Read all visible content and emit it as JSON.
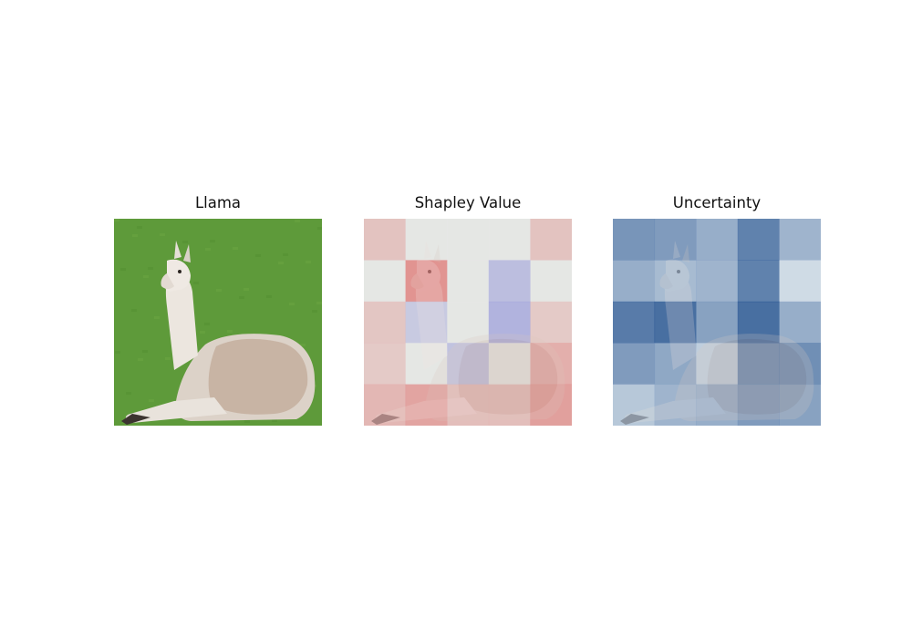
{
  "chart_data": [
    {
      "type": "image",
      "title": "Llama",
      "image_subject": "llama-photo"
    },
    {
      "type": "heatmap",
      "title": "Shapley Value",
      "rows": 5,
      "cols": 5,
      "colormap": "diverging-red-blue",
      "values": [
        [
          0.15,
          0.0,
          0.0,
          0.0,
          0.15
        ],
        [
          0.0,
          0.75,
          0.0,
          -0.2,
          0.0
        ],
        [
          0.1,
          -0.05,
          0.0,
          -0.35,
          0.05
        ],
        [
          0.05,
          0.0,
          -0.15,
          0.0,
          0.4
        ],
        [
          0.3,
          0.55,
          0.2,
          0.2,
          0.6
        ]
      ]
    },
    {
      "type": "heatmap",
      "title": "Uncertainty",
      "rows": 5,
      "cols": 5,
      "colormap": "sequential-blue",
      "values": [
        [
          0.65,
          0.6,
          0.45,
          0.8,
          0.4
        ],
        [
          0.45,
          0.35,
          0.4,
          0.8,
          0.1
        ],
        [
          0.85,
          0.95,
          0.55,
          0.95,
          0.45
        ],
        [
          0.6,
          0.5,
          0.2,
          0.7,
          0.7
        ],
        [
          0.25,
          0.4,
          0.45,
          0.6,
          0.55
        ]
      ]
    }
  ],
  "colors": {
    "grass": "#5e9a3a",
    "positive": "#e05a5a",
    "negative": "#5a5ad6",
    "uncertainty": "#2c65a3"
  }
}
